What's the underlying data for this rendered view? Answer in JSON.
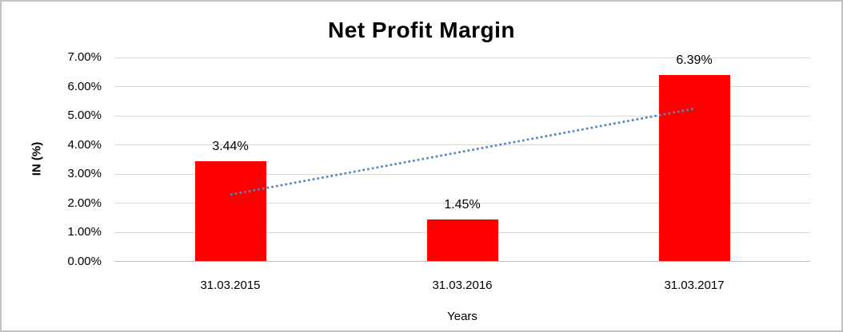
{
  "chart_data": {
    "type": "bar",
    "title": "Net Profit Margin",
    "xlabel": "Years",
    "ylabel": "IN (%)",
    "categories": [
      "31.03.2015",
      "31.03.2016",
      "31.03.2017"
    ],
    "values": [
      3.44,
      1.45,
      6.39
    ],
    "data_labels": [
      "3.44%",
      "1.45%",
      "6.39%"
    ],
    "yticks": [
      0,
      1,
      2,
      3,
      4,
      5,
      6,
      7
    ],
    "ytick_labels": [
      "0.00%",
      "1.00%",
      "2.00%",
      "3.00%",
      "4.00%",
      "5.00%",
      "6.00%",
      "7.00%"
    ],
    "ylim": [
      0,
      7
    ],
    "grid": true,
    "legend_position": "none",
    "colors": {
      "bar": "#FF0000",
      "trendline": "#4F86C8",
      "gridline": "#D9D9D9",
      "axis_line": "#BFBFBF",
      "text": "#000000"
    },
    "trendline": {
      "type": "linear",
      "style": "dotted",
      "start": {
        "category": "31.03.2015",
        "value": 2.29
      },
      "end": {
        "category": "31.03.2017",
        "value": 5.24
      }
    }
  }
}
